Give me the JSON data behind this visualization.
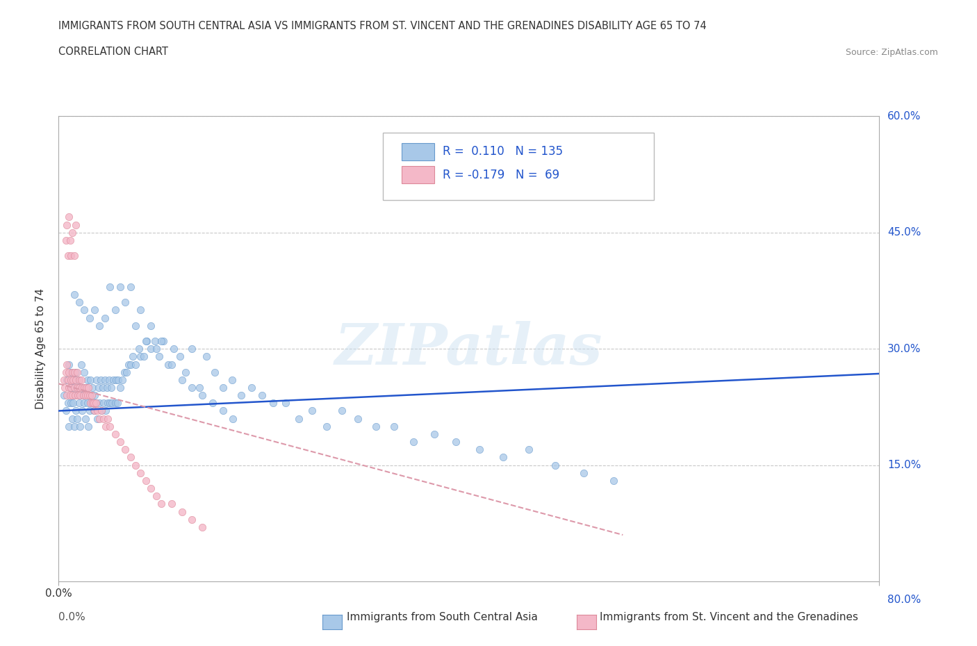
{
  "title_line1": "IMMIGRANTS FROM SOUTH CENTRAL ASIA VS IMMIGRANTS FROM ST. VINCENT AND THE GRENADINES DISABILITY AGE 65 TO 74",
  "title_line2": "CORRELATION CHART",
  "source_text": "Source: ZipAtlas.com",
  "ylabel": "Disability Age 65 to 74",
  "xlim": [
    0.0,
    0.8
  ],
  "ylim": [
    0.0,
    0.6
  ],
  "ytick_labels": [
    "15.0%",
    "30.0%",
    "45.0%",
    "60.0%"
  ],
  "ytick_values": [
    0.15,
    0.3,
    0.45,
    0.6
  ],
  "grid_color": "#c8c8c8",
  "blue_color": "#a8c8e8",
  "blue_edge_color": "#6699cc",
  "pink_color": "#f4b8c8",
  "pink_edge_color": "#dd8899",
  "blue_line_color": "#2255cc",
  "pink_line_color": "#dd99aa",
  "r_blue": 0.11,
  "n_blue": 135,
  "r_pink": -0.179,
  "n_pink": 69,
  "watermark": "ZIPatlas",
  "blue_line_y_start": 0.22,
  "blue_line_y_end": 0.268,
  "pink_line_x_start": 0.0,
  "pink_line_x_end": 0.55,
  "pink_line_y_start": 0.255,
  "pink_line_y_end": 0.06,
  "blue_scatter_x": [
    0.005,
    0.007,
    0.008,
    0.009,
    0.01,
    0.01,
    0.011,
    0.012,
    0.012,
    0.013,
    0.013,
    0.014,
    0.015,
    0.015,
    0.016,
    0.017,
    0.017,
    0.018,
    0.019,
    0.02,
    0.02,
    0.021,
    0.022,
    0.022,
    0.023,
    0.024,
    0.025,
    0.025,
    0.026,
    0.027,
    0.028,
    0.028,
    0.029,
    0.03,
    0.03,
    0.031,
    0.032,
    0.033,
    0.034,
    0.035,
    0.036,
    0.037,
    0.038,
    0.039,
    0.04,
    0.041,
    0.042,
    0.043,
    0.044,
    0.045,
    0.046,
    0.047,
    0.048,
    0.049,
    0.05,
    0.051,
    0.052,
    0.053,
    0.055,
    0.056,
    0.057,
    0.058,
    0.06,
    0.062,
    0.064,
    0.066,
    0.068,
    0.07,
    0.072,
    0.075,
    0.078,
    0.08,
    0.083,
    0.086,
    0.09,
    0.094,
    0.098,
    0.102,
    0.107,
    0.112,
    0.118,
    0.124,
    0.13,
    0.137,
    0.144,
    0.152,
    0.16,
    0.169,
    0.178,
    0.188,
    0.198,
    0.209,
    0.221,
    0.234,
    0.247,
    0.261,
    0.276,
    0.292,
    0.309,
    0.327,
    0.346,
    0.366,
    0.387,
    0.41,
    0.433,
    0.458,
    0.484,
    0.512,
    0.541,
    0.572,
    0.015,
    0.02,
    0.025,
    0.03,
    0.035,
    0.04,
    0.045,
    0.05,
    0.055,
    0.06,
    0.065,
    0.07,
    0.075,
    0.08,
    0.085,
    0.09,
    0.095,
    0.1,
    0.11,
    0.12,
    0.13,
    0.14,
    0.15,
    0.16,
    0.17
  ],
  "blue_scatter_y": [
    0.24,
    0.22,
    0.26,
    0.23,
    0.28,
    0.2,
    0.25,
    0.23,
    0.27,
    0.21,
    0.25,
    0.23,
    0.26,
    0.2,
    0.24,
    0.22,
    0.27,
    0.21,
    0.25,
    0.23,
    0.26,
    0.2,
    0.24,
    0.28,
    0.22,
    0.25,
    0.23,
    0.27,
    0.21,
    0.25,
    0.23,
    0.26,
    0.2,
    0.24,
    0.22,
    0.26,
    0.23,
    0.25,
    0.22,
    0.24,
    0.23,
    0.26,
    0.21,
    0.25,
    0.23,
    0.26,
    0.22,
    0.25,
    0.23,
    0.26,
    0.22,
    0.25,
    0.23,
    0.26,
    0.23,
    0.25,
    0.23,
    0.26,
    0.23,
    0.26,
    0.23,
    0.26,
    0.25,
    0.26,
    0.27,
    0.27,
    0.28,
    0.28,
    0.29,
    0.28,
    0.3,
    0.29,
    0.29,
    0.31,
    0.3,
    0.31,
    0.29,
    0.31,
    0.28,
    0.3,
    0.29,
    0.27,
    0.3,
    0.25,
    0.29,
    0.27,
    0.25,
    0.26,
    0.24,
    0.25,
    0.24,
    0.23,
    0.23,
    0.21,
    0.22,
    0.2,
    0.22,
    0.21,
    0.2,
    0.2,
    0.18,
    0.19,
    0.18,
    0.17,
    0.16,
    0.17,
    0.15,
    0.14,
    0.13,
    0.55,
    0.37,
    0.36,
    0.35,
    0.34,
    0.35,
    0.33,
    0.34,
    0.38,
    0.35,
    0.38,
    0.36,
    0.38,
    0.33,
    0.35,
    0.31,
    0.33,
    0.3,
    0.31,
    0.28,
    0.26,
    0.25,
    0.24,
    0.23,
    0.22,
    0.21
  ],
  "pink_scatter_x": [
    0.005,
    0.006,
    0.007,
    0.008,
    0.008,
    0.009,
    0.01,
    0.01,
    0.011,
    0.012,
    0.012,
    0.013,
    0.013,
    0.014,
    0.015,
    0.015,
    0.016,
    0.017,
    0.018,
    0.018,
    0.019,
    0.02,
    0.02,
    0.021,
    0.022,
    0.023,
    0.024,
    0.025,
    0.026,
    0.027,
    0.028,
    0.029,
    0.03,
    0.031,
    0.032,
    0.033,
    0.034,
    0.035,
    0.036,
    0.038,
    0.04,
    0.042,
    0.044,
    0.046,
    0.048,
    0.05,
    0.055,
    0.06,
    0.065,
    0.07,
    0.075,
    0.08,
    0.085,
    0.09,
    0.095,
    0.1,
    0.11,
    0.12,
    0.13,
    0.14,
    0.007,
    0.008,
    0.009,
    0.01,
    0.011,
    0.012,
    0.013,
    0.015,
    0.017
  ],
  "pink_scatter_y": [
    0.26,
    0.25,
    0.27,
    0.24,
    0.28,
    0.26,
    0.25,
    0.27,
    0.24,
    0.26,
    0.25,
    0.27,
    0.24,
    0.26,
    0.25,
    0.27,
    0.24,
    0.26,
    0.25,
    0.27,
    0.24,
    0.26,
    0.25,
    0.24,
    0.26,
    0.25,
    0.24,
    0.25,
    0.24,
    0.25,
    0.24,
    0.25,
    0.24,
    0.23,
    0.24,
    0.23,
    0.23,
    0.22,
    0.23,
    0.22,
    0.21,
    0.22,
    0.21,
    0.2,
    0.21,
    0.2,
    0.19,
    0.18,
    0.17,
    0.16,
    0.15,
    0.14,
    0.13,
    0.12,
    0.11,
    0.1,
    0.1,
    0.09,
    0.08,
    0.07,
    0.44,
    0.46,
    0.42,
    0.47,
    0.44,
    0.42,
    0.45,
    0.42,
    0.46
  ]
}
